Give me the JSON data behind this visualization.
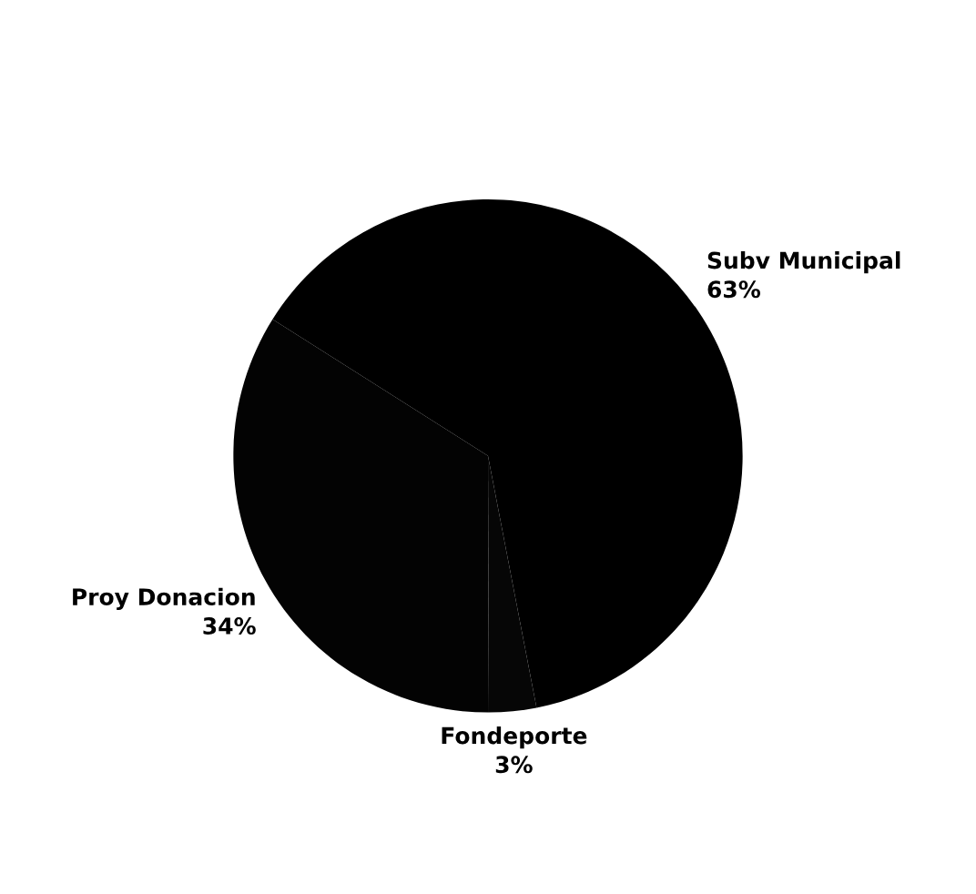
{
  "chart_data": {
    "type": "pie",
    "categories": [
      "Subv Municipal",
      "Proy Donacion",
      "Fondeporte"
    ],
    "values": [
      63,
      34,
      3
    ],
    "value_labels": [
      "63%",
      "34%",
      "3%"
    ],
    "colors": [
      "#000000",
      "#030303",
      "#060606"
    ]
  }
}
